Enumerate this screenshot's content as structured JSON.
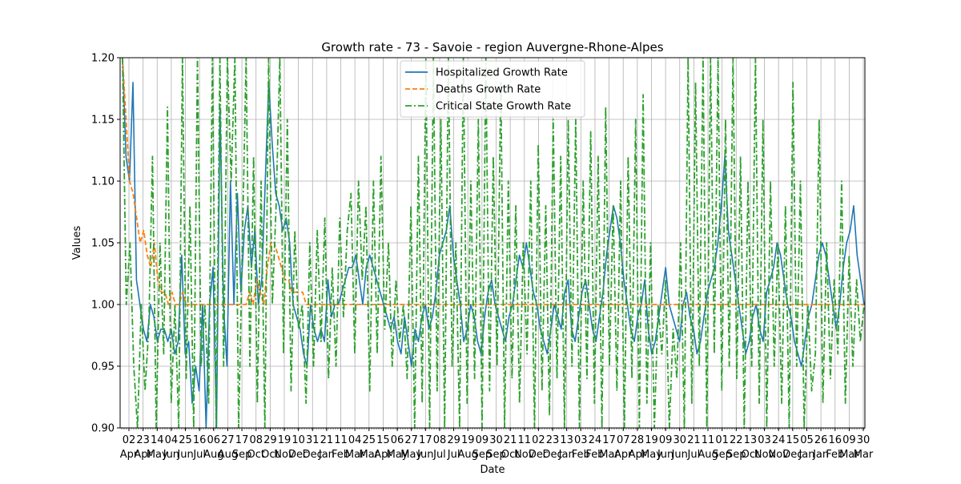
{
  "chart_data": {
    "type": "line",
    "title": "Growth rate - 73 - Savoie - region Auvergne-Rhone-Alpes",
    "xlabel": "Date",
    "ylabel": "Values",
    "ylim": [
      0.9,
      1.2
    ],
    "yticks": [
      "0.90",
      "0.95",
      "1.00",
      "1.05",
      "1.10",
      "1.15",
      "1.20"
    ],
    "grid": true,
    "legend_position": "top-center",
    "xticks": [
      {
        "day": "02",
        "month": "Apr"
      },
      {
        "day": "23",
        "month": "Apr"
      },
      {
        "day": "14",
        "month": "May"
      },
      {
        "day": "04",
        "month": "Jun"
      },
      {
        "day": "25",
        "month": "Jun"
      },
      {
        "day": "16",
        "month": "Jul"
      },
      {
        "day": "06",
        "month": "Aug"
      },
      {
        "day": "27",
        "month": "Aug"
      },
      {
        "day": "17",
        "month": "Sep"
      },
      {
        "day": "08",
        "month": "Oct"
      },
      {
        "day": "29",
        "month": "Oct"
      },
      {
        "day": "19",
        "month": "Nov"
      },
      {
        "day": "10",
        "month": "Dec"
      },
      {
        "day": "31",
        "month": "Dec"
      },
      {
        "day": "21",
        "month": "Jan"
      },
      {
        "day": "11",
        "month": "Feb"
      },
      {
        "day": "04",
        "month": "Mar"
      },
      {
        "day": "25",
        "month": "Mar"
      },
      {
        "day": "15",
        "month": "Apr"
      },
      {
        "day": "06",
        "month": "May"
      },
      {
        "day": "27",
        "month": "May"
      },
      {
        "day": "17",
        "month": "Jun"
      },
      {
        "day": "08",
        "month": "Jul"
      },
      {
        "day": "29",
        "month": "Jul"
      },
      {
        "day": "19",
        "month": "Aug"
      },
      {
        "day": "09",
        "month": "Sep"
      },
      {
        "day": "30",
        "month": "Sep"
      },
      {
        "day": "21",
        "month": "Oct"
      },
      {
        "day": "11",
        "month": "Nov"
      },
      {
        "day": "02",
        "month": "Dec"
      },
      {
        "day": "23",
        "month": "Dec"
      },
      {
        "day": "13",
        "month": "Jan"
      },
      {
        "day": "03",
        "month": "Feb"
      },
      {
        "day": "24",
        "month": "Feb"
      },
      {
        "day": "17",
        "month": "Mar"
      },
      {
        "day": "07",
        "month": "Apr"
      },
      {
        "day": "28",
        "month": "Apr"
      },
      {
        "day": "19",
        "month": "May"
      },
      {
        "day": "09",
        "month": "Jun"
      },
      {
        "day": "30",
        "month": "Jun"
      },
      {
        "day": "21",
        "month": "Jul"
      },
      {
        "day": "11",
        "month": "Aug"
      },
      {
        "day": "01",
        "month": "Sep"
      },
      {
        "day": "22",
        "month": "Sep"
      },
      {
        "day": "13",
        "month": "Oct"
      },
      {
        "day": "03",
        "month": "Nov"
      },
      {
        "day": "24",
        "month": "Nov"
      },
      {
        "day": "15",
        "month": "Dec"
      },
      {
        "day": "05",
        "month": "Jan"
      },
      {
        "day": "26",
        "month": "Jan"
      },
      {
        "day": "16",
        "month": "Feb"
      },
      {
        "day": "09",
        "month": "Mar"
      },
      {
        "day": "30",
        "month": "Mar"
      }
    ],
    "series": [
      {
        "name": "Hospitalized Growth Rate",
        "color": "#1f77b4",
        "style": "solid",
        "values": [
          1.2,
          1.12,
          1.1,
          1.18,
          1.02,
          1.0,
          0.98,
          0.97,
          1.0,
          0.99,
          0.97,
          0.98,
          0.98,
          0.97,
          0.98,
          0.96,
          0.97,
          1.04,
          0.96,
          0.97,
          0.92,
          0.95,
          0.93,
          1.0,
          0.9,
          1.0,
          1.03,
          0.9,
          1.16,
          1.0,
          0.95,
          1.1,
          1.0,
          1.09,
          1.01,
          1.06,
          1.08,
          1.03,
          1.06,
          1.0,
          1.02,
          1.1,
          1.18,
          1.13,
          1.09,
          1.08,
          1.06,
          1.07,
          1.05,
          1.0,
          0.99,
          0.98,
          0.96,
          0.95,
          1.0,
          0.98,
          0.97,
          0.98,
          0.97,
          1.02,
          0.99,
          1.0,
          1.0,
          1.01,
          1.02,
          1.03,
          1.03,
          1.04,
          1.02,
          1.0,
          1.03,
          1.04,
          1.03,
          1.02,
          1.01,
          1.0,
          0.99,
          0.98,
          0.99,
          0.97,
          0.96,
          0.99,
          0.97,
          0.95,
          0.98,
          0.97,
          0.99,
          1.0,
          0.98,
          0.99,
          1.01,
          1.04,
          1.05,
          1.06,
          1.08,
          1.04,
          1.02,
          1.0,
          0.97,
          0.98,
          1.0,
          0.99,
          0.97,
          0.96,
          0.99,
          1.01,
          1.02,
          1.0,
          0.99,
          0.98,
          0.97,
          0.99,
          1.0,
          1.02,
          1.04,
          1.03,
          1.05,
          1.03,
          1.01,
          1.0,
          0.98,
          0.97,
          0.96,
          0.98,
          1.0,
          0.99,
          0.98,
          1.01,
          1.02,
          0.98,
          0.97,
          0.99,
          1.01,
          1.02,
          1.0,
          0.98,
          0.97,
          0.99,
          1.01,
          1.04,
          1.06,
          1.08,
          1.07,
          1.05,
          1.02,
          1.0,
          0.98,
          0.97,
          0.99,
          1.0,
          1.02,
          0.98,
          0.96,
          0.97,
          0.99,
          1.01,
          1.03,
          1.0,
          0.99,
          0.98,
          0.97,
          1.0,
          1.01,
          0.99,
          0.98,
          0.96,
          0.97,
          0.99,
          1.01,
          1.02,
          1.03,
          1.05,
          1.08,
          1.12,
          1.06,
          1.04,
          1.02,
          1.0,
          0.98,
          0.96,
          0.97,
          0.99,
          1.0,
          0.98,
          0.97,
          1.01,
          1.02,
          1.03,
          1.05,
          1.04,
          1.02,
          1.0,
          0.99,
          0.97,
          0.96,
          0.95,
          0.97,
          0.99,
          1.0,
          1.02,
          1.04,
          1.05,
          1.04,
          1.02,
          1.0,
          0.98,
          1.0,
          1.03,
          1.05,
          1.06,
          1.08,
          1.04,
          1.02,
          1.0
        ]
      },
      {
        "name": "Deaths Growth Rate",
        "color": "#ff7f0e",
        "style": "dashed",
        "values": [
          1.2,
          1.15,
          1.1,
          1.09,
          1.07,
          1.05,
          1.06,
          1.04,
          1.03,
          1.05,
          1.02,
          1.01,
          1.01,
          1.0,
          1.01,
          1.0,
          1.0,
          1.01,
          1.0,
          1.0,
          1.0,
          1.0,
          1.0,
          1.0,
          1.0,
          1.0,
          1.0,
          1.0,
          1.0,
          1.0,
          1.0,
          1.0,
          1.0,
          1.0,
          1.0,
          1.0,
          1.01,
          1.0,
          1.02,
          1.01,
          1.0,
          1.03,
          1.05,
          1.05,
          1.04,
          1.03,
          1.02,
          1.02,
          1.01,
          1.01,
          1.01,
          1.01,
          1.0,
          1.0,
          1.0,
          1.0,
          1.0,
          1.0,
          1.0,
          1.0,
          1.0,
          1.0,
          1.0,
          1.0,
          1.0,
          1.0,
          1.0,
          1.0,
          1.0,
          1.0,
          1.0,
          1.0,
          1.0,
          1.0,
          1.0,
          1.0,
          1.0,
          1.0,
          1.0,
          1.0,
          1.0,
          1.0,
          1.0,
          1.0,
          1.0,
          1.0,
          1.0,
          1.0,
          1.0,
          1.0,
          1.0,
          1.0,
          1.0,
          1.0,
          1.0,
          1.0,
          1.0,
          1.0,
          1.0,
          1.0,
          1.0,
          1.0,
          1.0,
          1.0,
          1.0,
          1.0,
          1.0,
          1.0,
          1.0,
          1.0,
          1.0,
          1.0,
          1.0,
          1.0,
          1.0,
          1.0,
          1.0,
          1.0,
          1.0,
          1.0,
          1.0,
          1.0,
          1.0,
          1.0,
          1.0,
          1.0,
          1.0,
          1.0,
          1.0,
          1.0,
          1.0,
          1.0,
          1.0,
          1.0,
          1.0,
          1.0,
          1.0,
          1.0,
          1.0,
          1.0,
          1.0,
          1.0,
          1.0,
          1.0,
          1.0,
          1.0,
          1.0,
          1.0,
          1.0,
          1.0,
          1.0,
          1.0,
          1.0,
          1.0,
          1.0,
          1.0,
          1.0,
          1.0,
          1.0,
          1.0,
          1.0,
          1.0,
          1.0,
          1.0,
          1.0,
          1.0,
          1.0,
          1.0,
          1.0,
          1.0,
          1.0,
          1.0,
          1.0,
          1.0,
          1.0,
          1.0,
          1.0,
          1.0,
          1.0,
          1.0,
          1.0,
          1.0,
          1.0,
          1.0,
          1.0,
          1.0,
          1.0,
          1.0,
          1.0,
          1.0,
          1.0,
          1.0,
          1.0,
          1.0,
          1.0,
          1.0,
          1.0,
          1.0,
          1.0,
          1.0,
          1.0,
          1.0,
          1.0,
          1.0,
          1.0,
          1.0,
          1.0,
          1.0,
          1.0,
          1.0,
          1.0
        ]
      },
      {
        "name": "Critical State Growth Rate",
        "color": "#2ca02c",
        "style": "dashdot",
        "values": [
          1.2,
          1.0,
          1.05,
          0.95,
          0.9,
          1.0,
          0.93,
          0.98,
          1.12,
          0.9,
          1.05,
          0.96,
          1.16,
          0.92,
          1.0,
          0.9,
          1.2,
          0.94,
          1.08,
          0.9,
          1.2,
          0.95,
          1.0,
          0.92,
          1.2,
          0.9,
          1.2,
          0.95,
          1.2,
          1.1,
          1.2,
          0.9,
          1.05,
          1.2,
          0.95,
          1.12,
          0.92,
          1.1,
          0.9,
          1.2,
          1.0,
          1.08,
          1.2,
          0.96,
          1.15,
          0.93,
          1.06,
          0.98,
          1.0,
          0.92,
          1.05,
          0.95,
          1.06,
          0.97,
          1.07,
          0.94,
          1.03,
          0.95,
          1.07,
          0.99,
          1.06,
          1.09,
          0.96,
          1.1,
          1.02,
          1.08,
          0.93,
          1.1,
          0.96,
          1.12,
          0.98,
          1.05,
          0.95,
          1.02,
          0.97,
          1.0,
          0.94,
          1.08,
          0.9,
          1.12,
          0.92,
          1.2,
          0.9,
          1.2,
          0.93,
          1.15,
          0.9,
          1.2,
          0.95,
          1.05,
          0.9,
          1.2,
          0.92,
          1.1,
          0.94,
          1.15,
          0.9,
          1.2,
          0.93,
          1.12,
          0.95,
          1.18,
          0.9,
          1.1,
          0.94,
          1.08,
          0.92,
          1.05,
          0.96,
          1.1,
          0.9,
          1.13,
          0.93,
          1.08,
          0.91,
          1.15,
          0.94,
          1.12,
          0.9,
          1.15,
          0.95,
          1.15,
          0.9,
          1.1,
          0.94,
          1.14,
          0.92,
          1.12,
          0.9,
          1.16,
          0.95,
          1.08,
          0.93,
          1.1,
          0.9,
          1.12,
          0.94,
          1.15,
          0.9,
          1.17,
          0.92,
          1.05,
          0.9,
          1.0,
          0.96,
          1.02,
          0.9,
          0.98,
          0.94,
          1.05,
          0.9,
          1.2,
          0.92,
          1.18,
          0.95,
          1.2,
          0.9,
          1.2,
          0.96,
          1.2,
          0.93,
          1.15,
          0.95,
          1.2,
          0.94,
          1.12,
          0.9,
          1.1,
          0.95,
          1.2,
          0.92,
          1.15,
          0.9,
          1.1,
          0.95,
          1.05,
          0.92,
          1.08,
          0.9,
          1.18,
          0.95,
          1.1,
          0.9,
          1.0,
          0.93,
          0.96,
          1.15,
          0.92,
          1.05,
          0.94,
          1.02,
          0.96,
          1.1,
          0.92,
          1.04,
          0.95,
          1.02,
          0.97,
          1.0
        ]
      }
    ]
  }
}
